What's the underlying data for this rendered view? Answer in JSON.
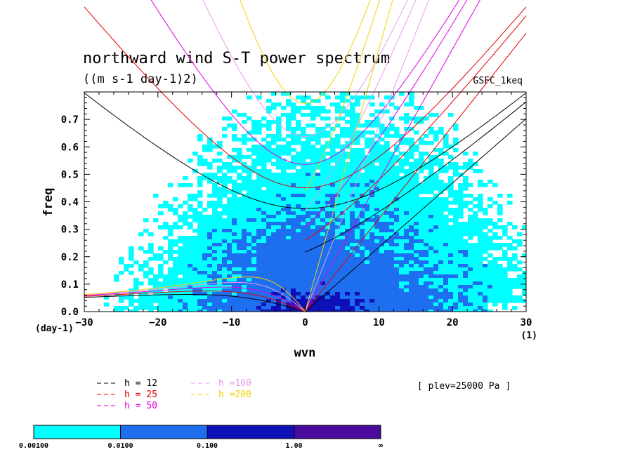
{
  "chart_data": {
    "type": "contour-spectrum",
    "title": "northward wind S-T power spectrum",
    "subtitle": "((m s-1 day-1)2)",
    "tag": "GSFC_1keq",
    "xlabel": "wvn",
    "ylabel": "freq",
    "x_unit_label": "(1)",
    "y_unit_label": "(day-1)",
    "xlim": [
      -30,
      30
    ],
    "ylim": [
      0,
      0.8
    ],
    "x_ticks": [
      -30,
      -20,
      -10,
      0,
      10,
      20,
      30
    ],
    "x_tick_labels": [
      "−30",
      "−20",
      "−10",
      "0",
      "10",
      "20",
      "30"
    ],
    "y_ticks": [
      0.0,
      0.1,
      0.2,
      0.3,
      0.4,
      0.5,
      0.6,
      0.7
    ],
    "y_tick_labels": [
      "0.0",
      "0.1",
      "0.2",
      "0.3",
      "0.4",
      "0.5",
      "0.6",
      "0.7"
    ],
    "plev_label": "[ plev=25000 Pa ]",
    "dispersion_curves": [
      {
        "h": 12,
        "label": "h = 12",
        "color": "#000000"
      },
      {
        "h": 25,
        "label": "h = 25",
        "color": "#e00000"
      },
      {
        "h": 50,
        "label": "h = 50",
        "color": "#e000e0"
      },
      {
        "h": 100,
        "label": "h =100",
        "color": "#e89ae8"
      },
      {
        "h": 200,
        "label": "h =200",
        "color": "#f2d200"
      }
    ],
    "colorbar": {
      "levels": [
        "0.00100",
        "0.0100",
        "0.100",
        "1.00",
        "∞"
      ],
      "colors": [
        "#00ffff",
        "#1e6ff0",
        "#1010b8",
        "#4b0a9e"
      ]
    }
  }
}
